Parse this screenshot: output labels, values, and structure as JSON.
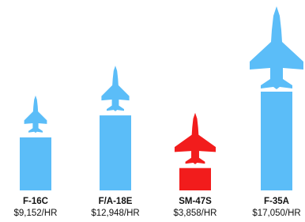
{
  "chart_data": {
    "type": "bar",
    "categories": [
      "F-16C",
      "F/A-18E",
      "SM-47S",
      "F-35A"
    ],
    "values": [
      9152,
      12948,
      3858,
      17050
    ],
    "value_labels": [
      "$9,152/HR",
      "$12,948/HR",
      "$3,858/HR",
      "$17,050/HR"
    ],
    "colors": [
      "#5bbdf8",
      "#5bbdf8",
      "#f21c1c",
      "#5bbdf8"
    ]
  }
}
